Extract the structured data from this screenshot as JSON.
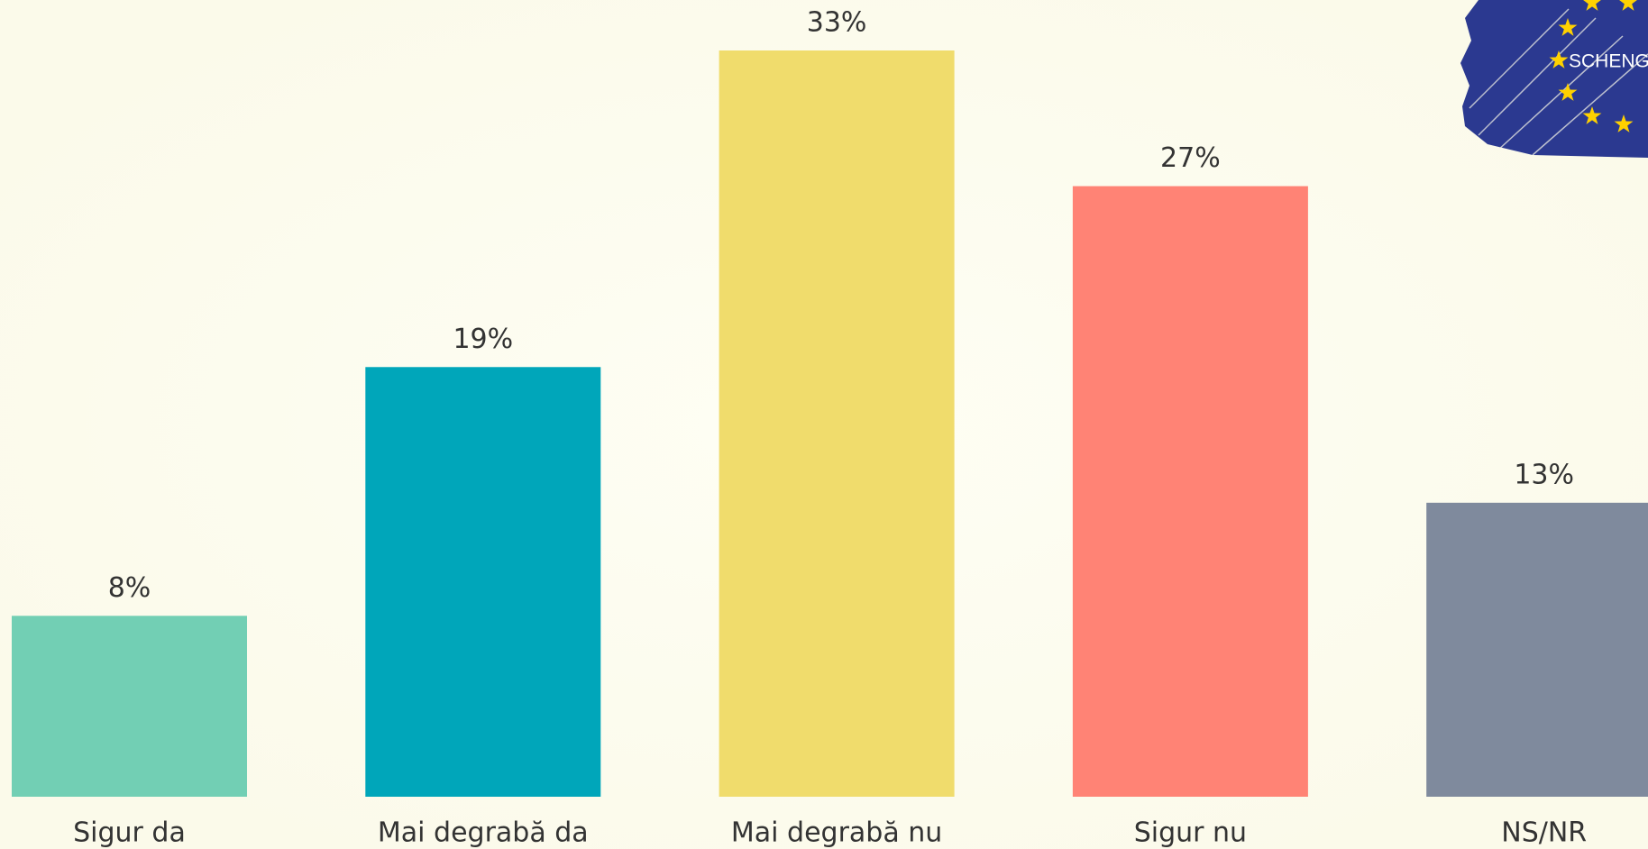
{
  "chart_data": {
    "type": "bar",
    "categories": [
      "Sigur da",
      "Mai degrabă da",
      "Mai degrabă nu",
      "Sigur nu",
      "NS/NR"
    ],
    "values": [
      8,
      19,
      33,
      27,
      13
    ],
    "value_labels": [
      "8%",
      "19%",
      "33%",
      "27%",
      "13%"
    ],
    "colors": [
      "#72cfb4",
      "#00a6ba",
      "#f0dc6c",
      "#ff8375",
      "#7f8a9d"
    ]
  },
  "logo": {
    "text": "SCHENG"
  }
}
